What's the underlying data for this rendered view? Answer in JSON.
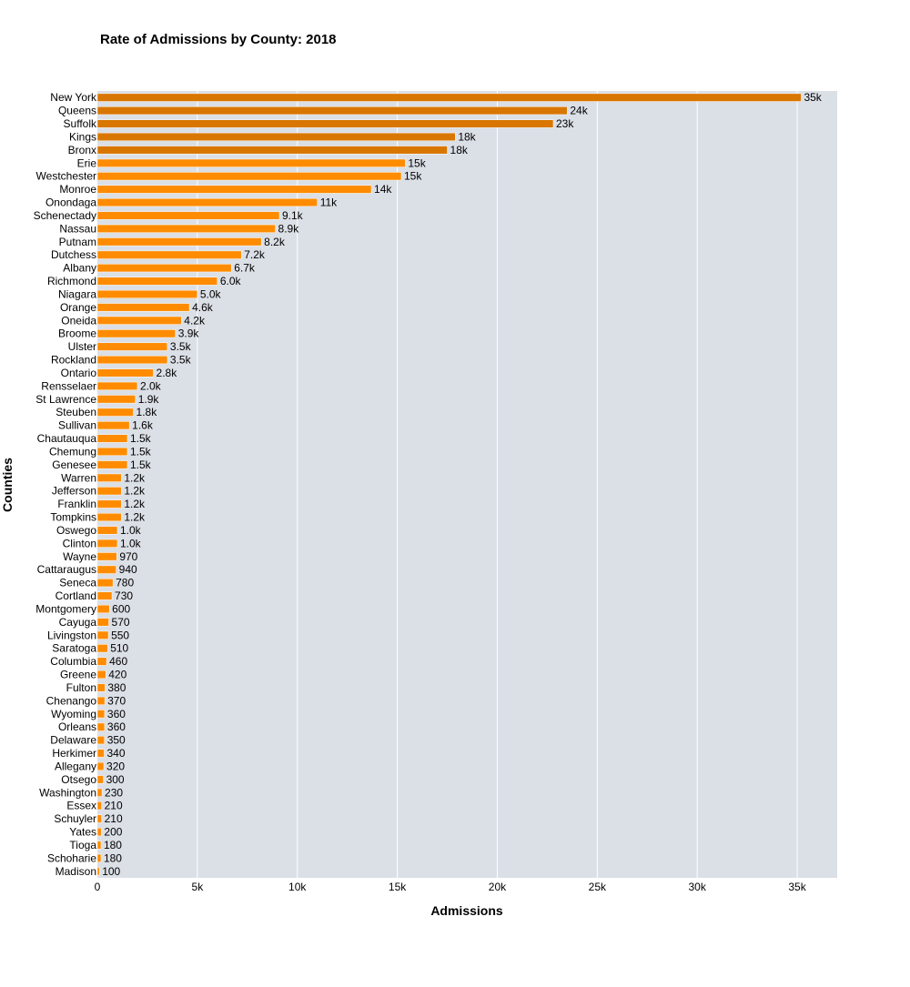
{
  "chart_data": {
    "type": "bar",
    "orientation": "horizontal",
    "title": "Rate of Admissions by County: 2018",
    "xlabel": "Admissions",
    "ylabel": "Counties",
    "xlim": [
      0,
      37000
    ],
    "x_ticks": [
      0,
      5000,
      10000,
      15000,
      20000,
      25000,
      30000,
      35000
    ],
    "x_tick_labels": [
      "0",
      "5k",
      "10k",
      "15k",
      "20k",
      "25k",
      "30k",
      "35k"
    ],
    "grid": true,
    "colors": {
      "top": "#d87600",
      "default": "#ff8c00",
      "background": "#dbdfe6",
      "grid": "#ffffff"
    },
    "categories": [
      "New York",
      "Queens",
      "Suffolk",
      "Kings",
      "Bronx",
      "Erie",
      "Westchester",
      "Monroe",
      "Onondaga",
      "Schenectady",
      "Nassau",
      "Putnam",
      "Dutchess",
      "Albany",
      "Richmond",
      "Niagara",
      "Orange",
      "Oneida",
      "Broome",
      "Ulster",
      "Rockland",
      "Ontario",
      "Rensselaer",
      "St Lawrence",
      "Steuben",
      "Sullivan",
      "Chautauqua",
      "Chemung",
      "Genesee",
      "Warren",
      "Jefferson",
      "Franklin",
      "Tompkins",
      "Oswego",
      "Clinton",
      "Wayne",
      "Cattaraugus",
      "Seneca",
      "Cortland",
      "Montgomery",
      "Cayuga",
      "Livingston",
      "Saratoga",
      "Columbia",
      "Greene",
      "Fulton",
      "Chenango",
      "Wyoming",
      "Orleans",
      "Delaware",
      "Herkimer",
      "Allegany",
      "Otsego",
      "Washington",
      "Essex",
      "Schuyler",
      "Yates",
      "Tioga",
      "Schoharie",
      "Madison"
    ],
    "values": [
      35200,
      23500,
      22800,
      17900,
      17500,
      15400,
      15200,
      13700,
      11000,
      9100,
      8900,
      8200,
      7200,
      6700,
      6000,
      5000,
      4600,
      4200,
      3900,
      3500,
      3500,
      2800,
      2000,
      1900,
      1800,
      1600,
      1500,
      1500,
      1500,
      1200,
      1200,
      1200,
      1200,
      1000,
      1000,
      970,
      940,
      780,
      730,
      600,
      570,
      550,
      510,
      460,
      420,
      380,
      370,
      360,
      360,
      350,
      340,
      320,
      300,
      230,
      210,
      210,
      200,
      180,
      180,
      100
    ],
    "value_labels": [
      "35k",
      "24k",
      "23k",
      "18k",
      "18k",
      "15k",
      "15k",
      "14k",
      "11k",
      "9.1k",
      "8.9k",
      "8.2k",
      "7.2k",
      "6.7k",
      "6.0k",
      "5.0k",
      "4.6k",
      "4.2k",
      "3.9k",
      "3.5k",
      "3.5k",
      "2.8k",
      "2.0k",
      "1.9k",
      "1.8k",
      "1.6k",
      "1.5k",
      "1.5k",
      "1.5k",
      "1.2k",
      "1.2k",
      "1.2k",
      "1.2k",
      "1.0k",
      "1.0k",
      "970",
      "940",
      "780",
      "730",
      "600",
      "570",
      "550",
      "510",
      "460",
      "420",
      "380",
      "370",
      "360",
      "360",
      "350",
      "340",
      "320",
      "300",
      "230",
      "210",
      "210",
      "200",
      "180",
      "180",
      "100"
    ],
    "highlight_top_n": 5
  }
}
